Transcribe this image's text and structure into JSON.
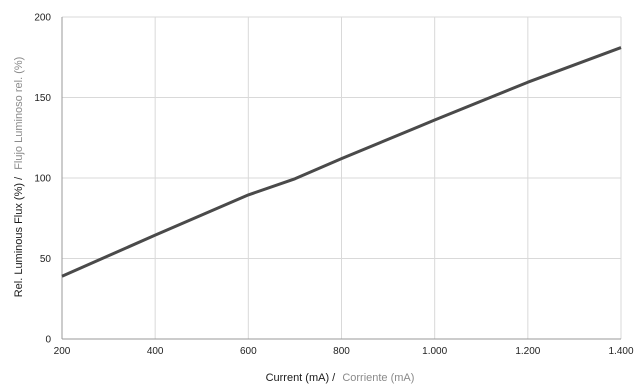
{
  "chart_data": {
    "type": "line",
    "title": "",
    "x": [
      200,
      400,
      600,
      700,
      800,
      1000,
      1200,
      1400
    ],
    "series": [
      {
        "values": [
          39,
          64.5,
          89.5,
          99.5,
          112,
          136,
          159.5,
          181
        ]
      }
    ],
    "xlim": [
      200,
      1400
    ],
    "ylim": [
      0,
      200
    ],
    "x_ticks": [
      200,
      400,
      600,
      800,
      1000,
      1200,
      1400
    ],
    "x_tick_labels": [
      "200",
      "400",
      "600",
      "800",
      "1.000",
      "1.200",
      "1.400"
    ],
    "y_ticks": [
      0,
      50,
      100,
      150,
      200
    ],
    "y_tick_labels": [
      "0",
      "50",
      "100",
      "150",
      "200"
    ],
    "xlabel": {
      "primary": "Current (mA) /",
      "secondary": "Corriente (mA)"
    },
    "ylabel": {
      "primary": "Rel. Luminous Flux (%) /",
      "secondary": "Flujo Luminoso rel. (%)"
    },
    "grid": true,
    "legend": "none",
    "colors": {
      "line": "#4a4a4a",
      "grid": "#d9d9d9",
      "axis": "#999999",
      "primary_text": "#1a1a1a",
      "secondary_text": "#8a8a8a"
    }
  }
}
